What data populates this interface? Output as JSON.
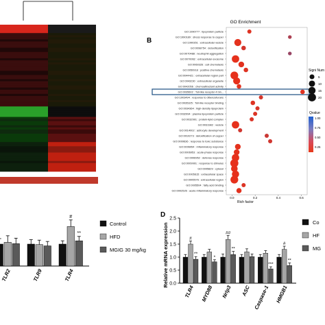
{
  "panel_labels": {
    "b": "B",
    "d": "D"
  },
  "go_enrichment": {
    "title": "GO Enrichment",
    "x_label": "Rich factor",
    "size_legend_title": "Signi Num",
    "size_legend_values": [
      "5",
      "10",
      "15",
      "20"
    ],
    "color_legend_title": "Qvalue",
    "color_ticks": [
      "1.00",
      "0.75",
      "0.50",
      "0.25"
    ],
    "terms": [
      "GO:1990777 : lipoprotein particle",
      "GO:1990189 : stress response to copper",
      "GO:1990351 : extracellular vesicle",
      "GO:0098754 : detoxification",
      "GO:0070488 : neutrophil aggregation",
      "GO:0070062 : extracellular exosome",
      "GO:0060326 : cell chemotaxis",
      "GO:0050918 : positive chemotaxis",
      "GO:0044421 : extracellular region part",
      "GO:0043230 : extracellular organelle",
      "GO:0042056 : chemoattractant activity",
      "GO:0035602 : Toll-like receptor 4 bin...",
      "GO:1903494 : response to dibenzofurans",
      "GO:0035325 : Toll-like receptor binding",
      "GO:0034364 : high-density lipoprotein",
      "GO:0032994 : plasma lipoprotein particle",
      "GO:0032991 : protein-lipid complex",
      "GO:0031982 : vesicle",
      "GO:0014002 : astrocyte development",
      "GO:0010273 : detoxification of copper",
      "GO:0009636 : response to toxic substance",
      "GO:0006954 : inflammatory response",
      "GO:0006953 : acute-phase response",
      "GO:0006952 : defense response",
      "GO:0009991 : response to stimulus",
      "GO:0005829 : cytosol",
      "GO:0005615 : extracellular space",
      "GO:0005576 : extracellular region",
      "GO:0005504 : fatty acid binding",
      "GO:0002526 : acute inflammatory response"
    ]
  },
  "chart_data": [
    {
      "type": "scatter",
      "title": "GO Enrichment",
      "xlabel": "Rich factor",
      "xlim": [
        -0.05,
        0.65
      ],
      "xticks": [
        "0.0",
        "0.2",
        "0.4",
        "0.6"
      ],
      "rich_factor": [
        0.15,
        0.5,
        0.05,
        0.1,
        0.5,
        0.03,
        0.08,
        0.12,
        0.02,
        0.04,
        0.06,
        0.61,
        0.25,
        0.18,
        0.22,
        0.2,
        0.17,
        0.03,
        0.07,
        0.3,
        0.33,
        0.05,
        0.04,
        0.03,
        0.02,
        0.02,
        0.03,
        0.02,
        0.1,
        0.06
      ],
      "qvalue": [
        0.05,
        0.3,
        0.02,
        0.1,
        0.4,
        0.01,
        0.03,
        0.05,
        0.01,
        0.01,
        0.02,
        0.04,
        0.1,
        0.05,
        0.08,
        0.06,
        0.07,
        0.01,
        0.12,
        0.15,
        0.12,
        0.02,
        0.02,
        0.01,
        0.01,
        0.01,
        0.01,
        0.01,
        0.06,
        0.03
      ],
      "count": [
        3,
        2,
        14,
        4,
        2,
        16,
        8,
        4,
        18,
        14,
        4,
        4,
        3,
        4,
        3,
        3,
        3,
        16,
        3,
        3,
        3,
        8,
        8,
        16,
        20,
        12,
        15,
        18,
        3,
        6
      ],
      "highlighted_term": "GO:0035602 : Toll-like receptor 4 bin..."
    },
    {
      "type": "bar",
      "legend": [
        "Control",
        "HFD",
        "MGIG 30 mg/kg"
      ],
      "categories": [
        "TLR2",
        "TLR9",
        "TLR4"
      ],
      "series": [
        {
          "name": "Control",
          "values": [
            1.0,
            1.0,
            1.0
          ]
        },
        {
          "name": "HFD",
          "values": [
            1.08,
            0.98,
            1.8
          ]
        },
        {
          "name": "MGIG 30 mg/kg",
          "values": [
            1.02,
            0.92,
            1.15
          ]
        }
      ],
      "errors": [
        [
          0.25,
          0.2,
          0.15
        ],
        [
          0.3,
          0.2,
          0.3
        ],
        [
          0.25,
          0.2,
          0.2
        ]
      ],
      "annotations": [
        {
          "category": "TLR4",
          "series": "HFD",
          "text": "#"
        },
        {
          "category": "TLR4",
          "series": "MGIG 30 mg/kg",
          "text": "**"
        }
      ]
    },
    {
      "type": "bar",
      "ylabel": "Relative mRNA expression",
      "ylim": [
        0,
        2.5
      ],
      "yticks": [
        "0.0",
        "0.5",
        "1.0",
        "1.5",
        "2.0",
        "2.5"
      ],
      "legend": [
        "Co",
        "HF",
        "MG"
      ],
      "categories": [
        "TLR4",
        "MYD88",
        "Nrlp3",
        "ASC",
        "Caspase-1",
        "HMGB1"
      ],
      "series": [
        {
          "values": [
            1.0,
            1.0,
            1.0,
            1.0,
            1.0,
            1.0
          ]
        },
        {
          "values": [
            1.5,
            1.2,
            1.68,
            1.2,
            1.15,
            1.3
          ]
        },
        {
          "values": [
            0.92,
            0.82,
            1.1,
            1.02,
            0.55,
            0.68
          ]
        }
      ],
      "errors": [
        [
          0.1,
          0.1,
          0.12,
          0.1,
          0.1,
          0.1
        ],
        [
          0.12,
          0.1,
          0.15,
          0.12,
          0.1,
          0.12
        ],
        [
          0.1,
          0.08,
          0.12,
          0.1,
          0.08,
          0.1
        ]
      ],
      "annotations": [
        {
          "category": "TLR4",
          "series": 1,
          "text": "#"
        },
        {
          "category": "TLR4",
          "series": 2,
          "text": "**"
        },
        {
          "category": "MYD88",
          "series": 2,
          "text": "*"
        },
        {
          "category": "Nrlp3",
          "series": 1,
          "text": "##"
        },
        {
          "category": "Nrlp3",
          "series": 2,
          "text": "**"
        },
        {
          "category": "Caspase-1",
          "series": 2,
          "text": "***"
        },
        {
          "category": "HMGB1",
          "series": 1,
          "text": "#"
        },
        {
          "category": "HMGB1",
          "series": 2,
          "text": "**"
        }
      ]
    }
  ],
  "colors": {
    "control": "#111111",
    "hfd": "#a6a6a6",
    "mgig": "#5a5a5a",
    "highlight_box": "#2b5a8a",
    "dot": "#e8311a"
  }
}
